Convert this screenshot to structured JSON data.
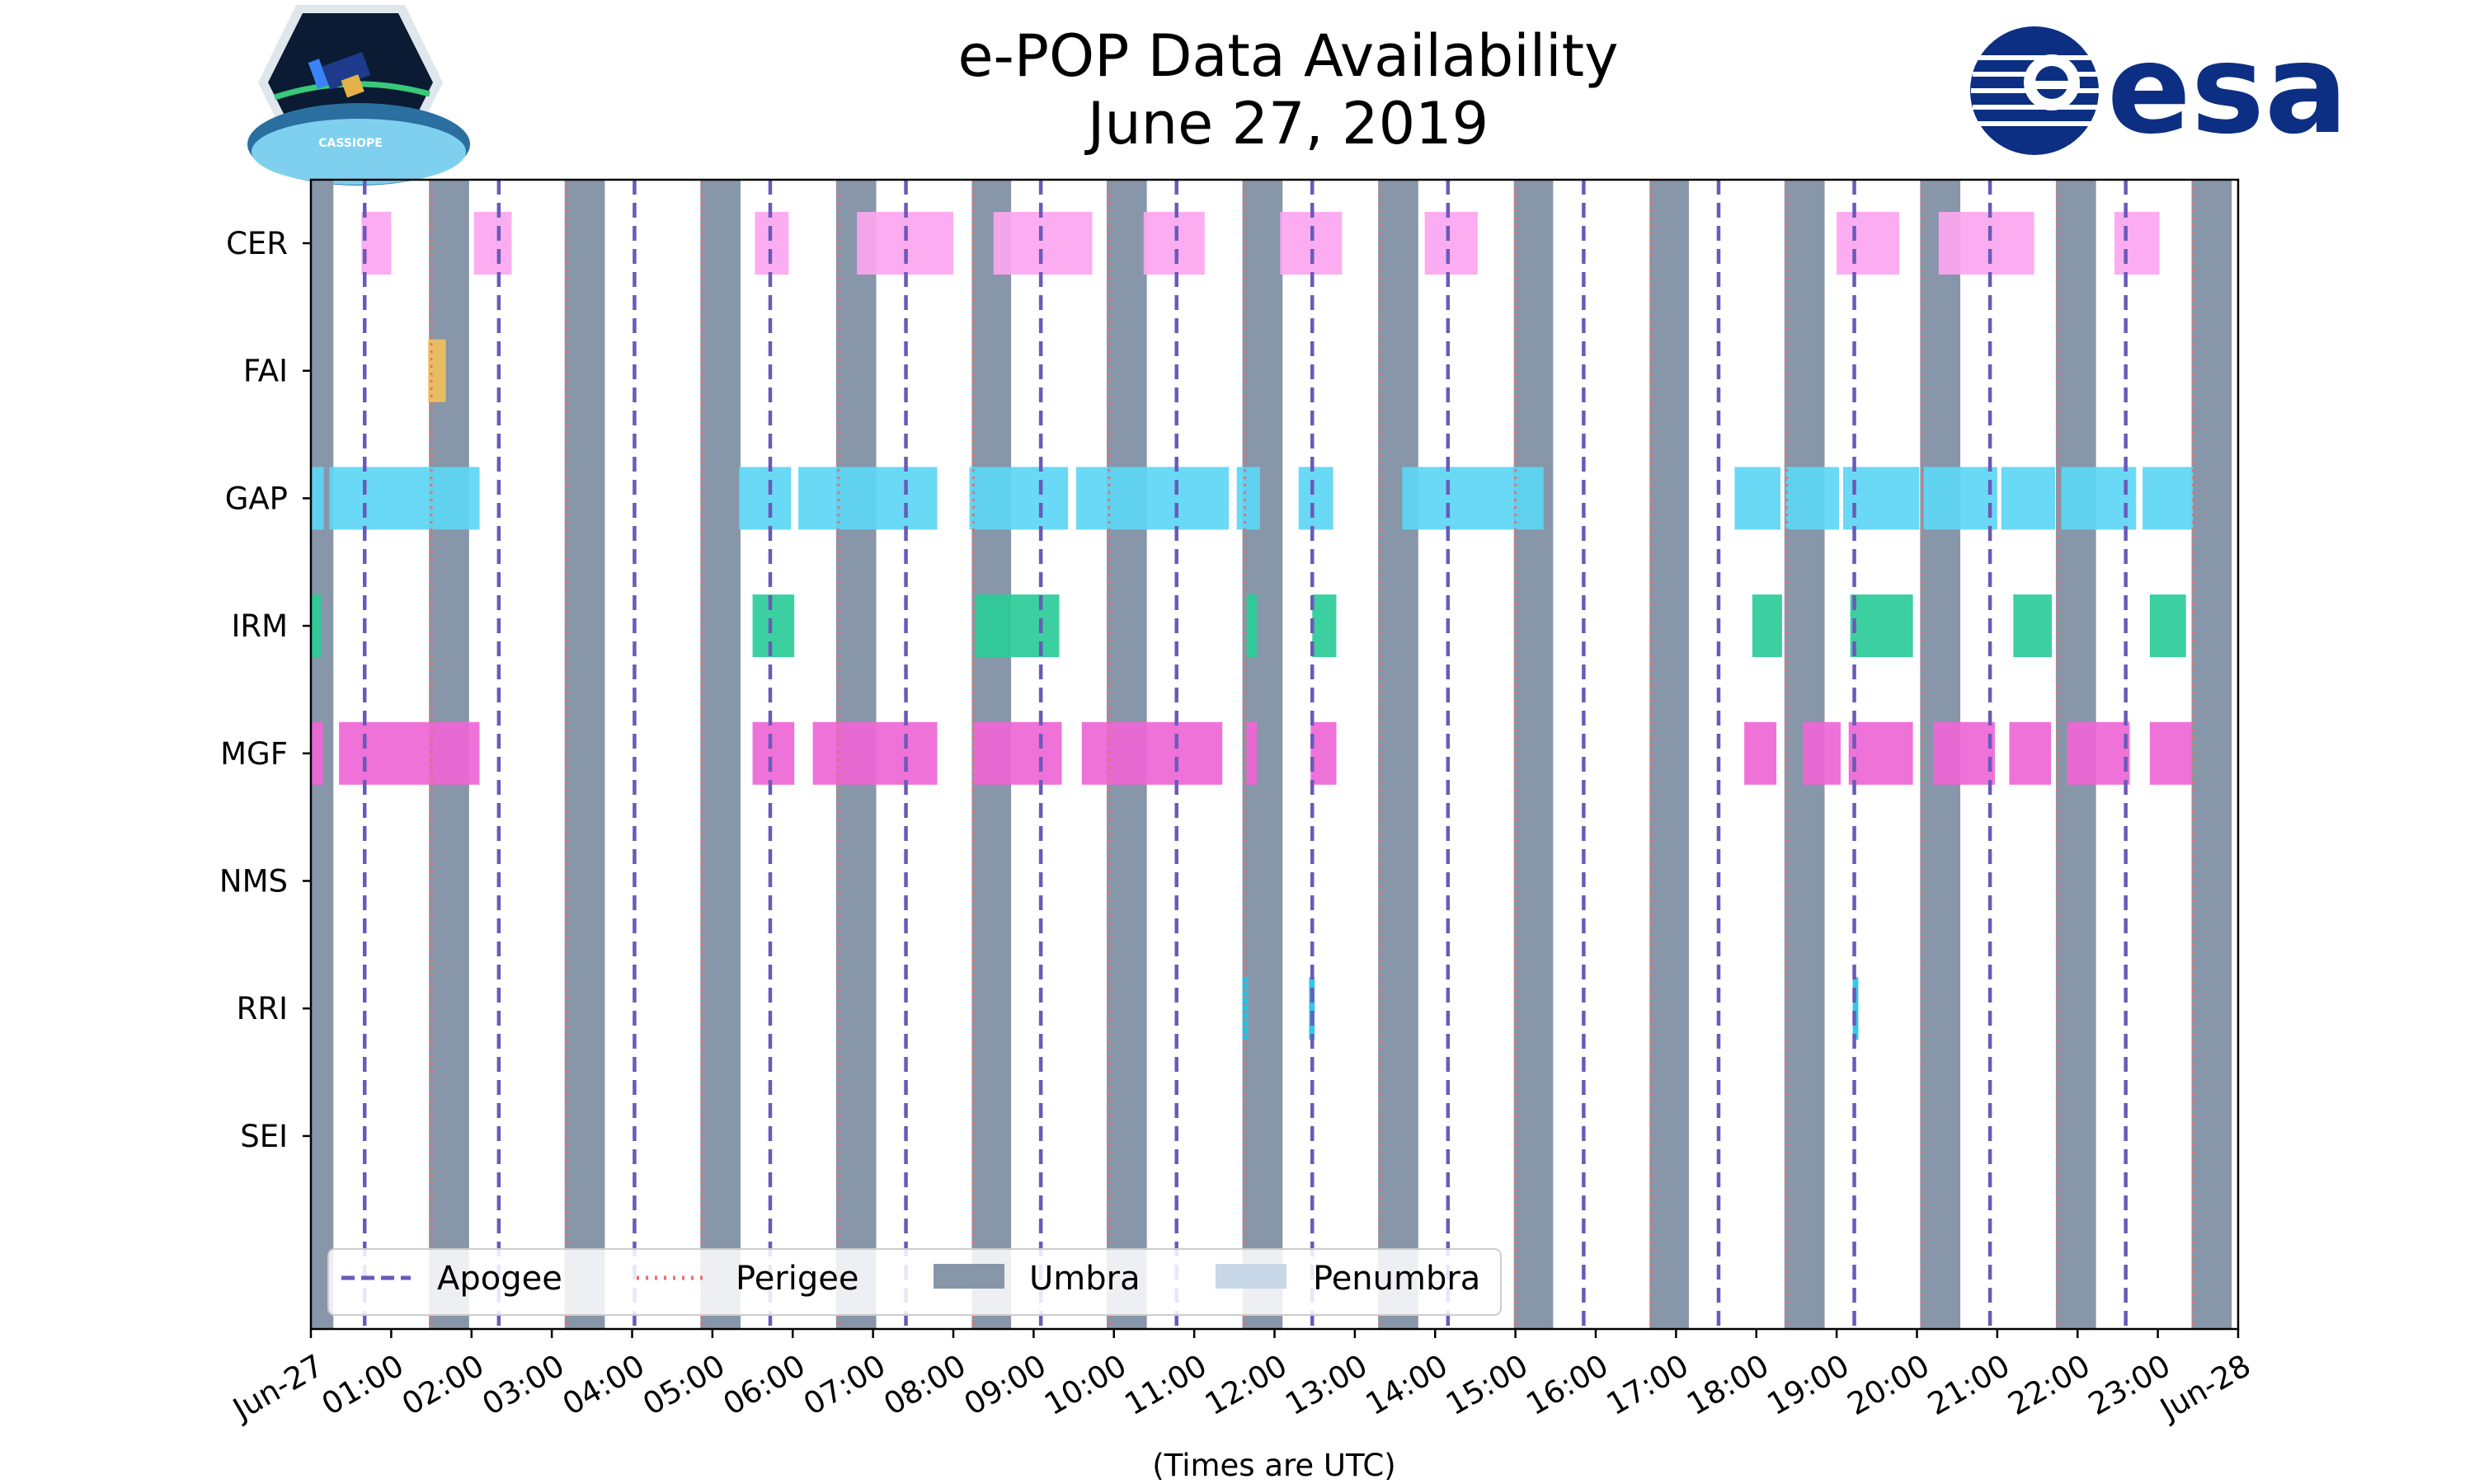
{
  "chart_data": {
    "type": "timeline",
    "title_line1": "e-POP Data Availability",
    "title_line2": "June 27, 2019",
    "xlabel": "(Times are UTC)",
    "x_unit": "hours UTC",
    "xlim": [
      0,
      24
    ],
    "x_ticks": [
      {
        "h": 0,
        "label": "Jun-27"
      },
      {
        "h": 1,
        "label": "01:00"
      },
      {
        "h": 2,
        "label": "02:00"
      },
      {
        "h": 3,
        "label": "03:00"
      },
      {
        "h": 4,
        "label": "04:00"
      },
      {
        "h": 5,
        "label": "05:00"
      },
      {
        "h": 6,
        "label": "06:00"
      },
      {
        "h": 7,
        "label": "07:00"
      },
      {
        "h": 8,
        "label": "08:00"
      },
      {
        "h": 9,
        "label": "09:00"
      },
      {
        "h": 10,
        "label": "10:00"
      },
      {
        "h": 11,
        "label": "11:00"
      },
      {
        "h": 12,
        "label": "12:00"
      },
      {
        "h": 13,
        "label": "13:00"
      },
      {
        "h": 14,
        "label": "14:00"
      },
      {
        "h": 15,
        "label": "15:00"
      },
      {
        "h": 16,
        "label": "16:00"
      },
      {
        "h": 17,
        "label": "17:00"
      },
      {
        "h": 18,
        "label": "18:00"
      },
      {
        "h": 19,
        "label": "19:00"
      },
      {
        "h": 20,
        "label": "20:00"
      },
      {
        "h": 21,
        "label": "21:00"
      },
      {
        "h": 22,
        "label": "22:00"
      },
      {
        "h": 23,
        "label": "23:00"
      },
      {
        "h": 24,
        "label": "Jun-28"
      }
    ],
    "instruments": [
      "CER",
      "FAI",
      "GAP",
      "IRM",
      "MGF",
      "NMS",
      "RRI",
      "SEI"
    ],
    "umbra": [
      [
        0.0,
        0.28
      ],
      [
        1.47,
        1.97
      ],
      [
        3.16,
        3.66
      ],
      [
        4.85,
        5.35
      ],
      [
        6.54,
        7.04
      ],
      [
        8.23,
        8.72
      ],
      [
        9.91,
        10.41
      ],
      [
        11.6,
        12.1
      ],
      [
        13.29,
        13.79
      ],
      [
        14.98,
        15.47
      ],
      [
        16.67,
        17.16
      ],
      [
        18.35,
        18.85
      ],
      [
        20.04,
        20.54
      ],
      [
        21.73,
        22.23
      ],
      [
        23.42,
        23.92
      ]
    ],
    "apogee": [
      0.67,
      2.34,
      4.03,
      5.72,
      7.41,
      9.09,
      10.78,
      12.47,
      14.16,
      15.85,
      17.53,
      19.22,
      20.91,
      22.6
    ],
    "perigee": [
      1.5,
      3.19,
      4.88,
      6.57,
      8.25,
      9.94,
      11.63,
      13.32,
      15.0,
      16.69,
      18.38,
      20.07,
      21.76,
      23.44
    ],
    "data_segments": {
      "CER": [
        [
          0.63,
          1.0
        ],
        [
          2.03,
          2.5
        ],
        [
          5.53,
          5.95
        ],
        [
          6.8,
          8.0
        ],
        [
          8.5,
          9.73
        ],
        [
          10.37,
          11.13
        ],
        [
          12.07,
          12.84
        ],
        [
          13.87,
          14.53
        ],
        [
          19.0,
          19.78
        ],
        [
          20.27,
          21.46
        ],
        [
          22.46,
          23.02
        ]
      ],
      "FAI": [
        [
          1.46,
          1.68
        ]
      ],
      "GAP": [
        [
          0.0,
          0.16
        ],
        [
          0.23,
          2.1
        ],
        [
          5.33,
          5.98
        ],
        [
          6.07,
          7.8
        ],
        [
          8.2,
          9.43
        ],
        [
          9.53,
          11.43
        ],
        [
          11.53,
          11.82
        ],
        [
          12.3,
          12.73
        ],
        [
          13.59,
          15.35
        ],
        [
          17.73,
          18.3
        ],
        [
          18.37,
          19.03
        ],
        [
          19.08,
          20.03
        ],
        [
          20.08,
          21.0
        ],
        [
          21.05,
          21.72
        ],
        [
          21.8,
          22.73
        ],
        [
          22.81,
          23.44
        ]
      ],
      "IRM": [
        [
          0.0,
          0.13
        ],
        [
          5.5,
          6.02
        ],
        [
          8.27,
          9.32
        ],
        [
          11.65,
          11.78
        ],
        [
          12.47,
          12.77
        ],
        [
          17.95,
          18.32
        ],
        [
          19.17,
          19.95
        ],
        [
          21.2,
          21.68
        ],
        [
          22.9,
          23.35
        ]
      ],
      "MGF": [
        [
          0.0,
          0.15
        ],
        [
          0.35,
          2.1
        ],
        [
          5.5,
          6.02
        ],
        [
          6.25,
          7.8
        ],
        [
          8.25,
          9.35
        ],
        [
          9.6,
          11.35
        ],
        [
          11.65,
          11.78
        ],
        [
          12.45,
          12.77
        ],
        [
          17.85,
          18.25
        ],
        [
          18.58,
          19.05
        ],
        [
          19.15,
          19.95
        ],
        [
          20.2,
          20.97
        ],
        [
          21.15,
          21.67
        ],
        [
          21.87,
          22.65
        ],
        [
          22.9,
          23.42
        ]
      ],
      "NMS": [],
      "RRI": [
        [
          11.6,
          11.67
        ],
        [
          12.43,
          12.5
        ],
        [
          19.2,
          19.27
        ]
      ],
      "SEI": []
    },
    "legend": [
      {
        "label": "Apogee",
        "style": "dashed"
      },
      {
        "label": "Perigee",
        "style": "dotted"
      },
      {
        "label": "Umbra",
        "style": "box"
      },
      {
        "label": "Penumbra",
        "style": "box"
      }
    ],
    "legend_position": "lower-left",
    "colors": {
      "CER": "#fca6f0",
      "FAI": "#f0c05c",
      "GAP": "#5cd6f4",
      "IRM": "#2bcc99",
      "MGF": "#ee66d6",
      "RRI": "#22c3e6",
      "umbra": "#8796a8",
      "penumbra": "#c8d8e8",
      "apogee": "#6a5ab8",
      "perigee": "#e57070"
    }
  },
  "logos": {
    "left_name": "CASSIOPE",
    "right_name": "esa"
  }
}
